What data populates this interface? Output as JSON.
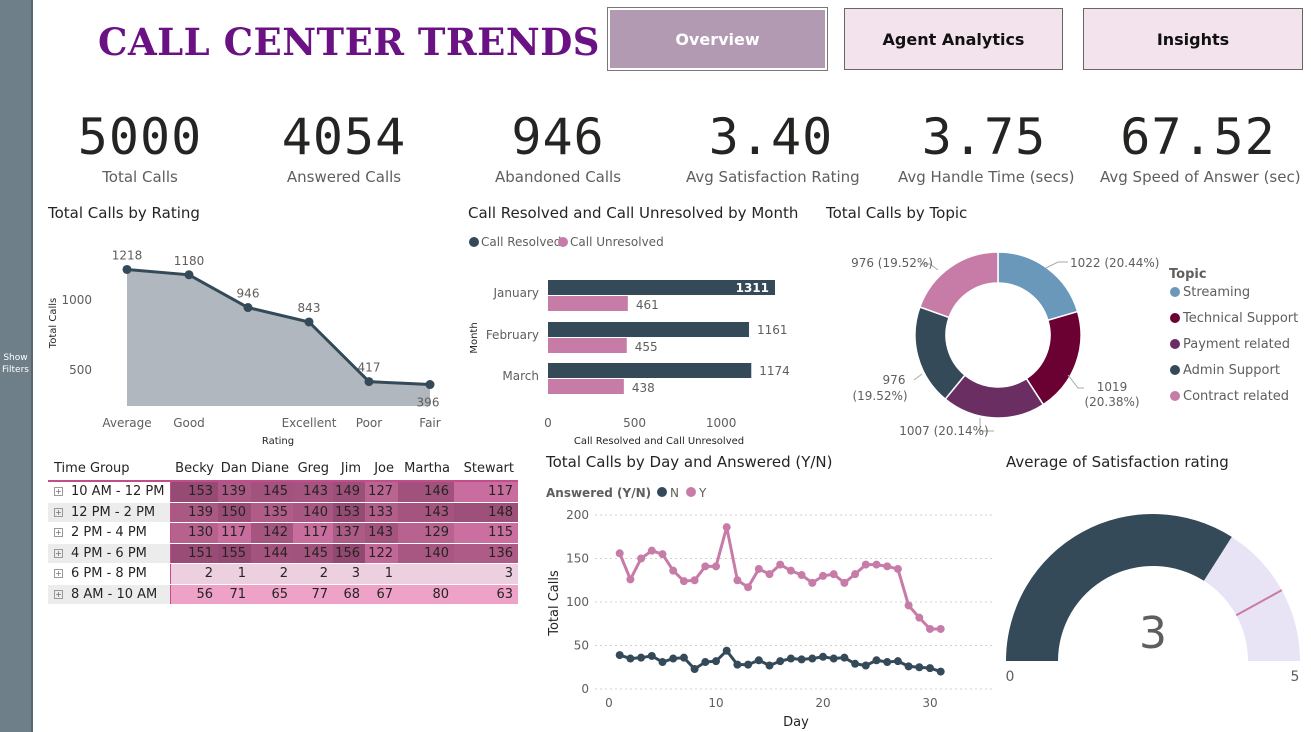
{
  "filters": {
    "label_line1": "Show",
    "label_line2": "Filters"
  },
  "title": "CALL CENTER TRENDS",
  "nav": {
    "overview": "Overview",
    "agent": "Agent Analytics",
    "insights": "Insights"
  },
  "kpis": [
    {
      "value": "5000",
      "label": "Total Calls"
    },
    {
      "value": "4054",
      "label": "Answered Calls"
    },
    {
      "value": "946",
      "label": "Abandoned Calls"
    },
    {
      "value": "3.40",
      "label": "Avg Satisfaction Rating"
    },
    {
      "value": "3.75",
      "label": "Avg Handle Time (secs)"
    },
    {
      "value": "67.52",
      "label": "Avg Speed of Answer (sec)"
    }
  ],
  "visuals": {
    "rating_title": "Total Calls by Rating",
    "month_title": "Call Resolved and Call Unresolved by Month",
    "topic_title": "Total Calls by Topic",
    "day_title": "Total Calls by Day and Answered (Y/N)",
    "gauge_title": "Average of Satisfaction rating"
  },
  "colors": {
    "dark": "#344a58",
    "pink": "#c77ca8",
    "grey_area": "#b0b7be",
    "maroon": "#6b0033",
    "purple": "#6b2e63",
    "blue": "#6a98bb",
    "lavender": "#e8e4f5",
    "brand": "#6a1184"
  },
  "chart_data": [
    {
      "type": "area",
      "title": "Total Calls by Rating",
      "xlabel": "Rating",
      "ylabel": "Total Calls",
      "categories": [
        "Average",
        "Good",
        "",
        "Excellent",
        "Poor",
        "Fair"
      ],
      "values": [
        1218,
        1180,
        946,
        843,
        417,
        396
      ],
      "yticks": [
        "1000",
        "500"
      ]
    },
    {
      "type": "bar",
      "title": "Call Resolved and Call Unresolved by Month",
      "orientation": "horizontal",
      "xlabel": "Call Resolved and Call Unresolved",
      "ylabel": "Month",
      "categories": [
        "January",
        "February",
        "March"
      ],
      "series": [
        {
          "name": "Call Resolved",
          "values": [
            1311,
            1161,
            1174
          ]
        },
        {
          "name": "Call Unresolved",
          "values": [
            461,
            455,
            438
          ]
        }
      ],
      "xticks": [
        "0",
        "500",
        "1000"
      ],
      "legend": "top-left"
    },
    {
      "type": "pie",
      "title": "Total Calls by Topic",
      "legend_title": "Topic",
      "slices": [
        {
          "name": "Streaming",
          "value": 1022,
          "label": "1022 (20.44%)"
        },
        {
          "name": "Technical Support",
          "value": 1019,
          "label_line1": "1019",
          "label_line2": "(20.38%)"
        },
        {
          "name": "Payment related",
          "value": 1007,
          "label": "1007 (20.14%)"
        },
        {
          "name": "Admin Support",
          "value": 976,
          "label_line1": "976",
          "label_line2": "(19.52%)"
        },
        {
          "name": "Contract related",
          "value": 976,
          "label": "976 (19.52%)"
        }
      ]
    },
    {
      "type": "line",
      "title": "Total Calls by Day and Answered (Y/N)",
      "xlabel": "Day",
      "ylabel": "Total Calls",
      "legend_title": "Answered (Y/N)",
      "x": [
        1,
        2,
        3,
        4,
        5,
        6,
        7,
        8,
        9,
        10,
        11,
        12,
        13,
        14,
        15,
        16,
        17,
        18,
        19,
        20,
        21,
        22,
        23,
        24,
        25,
        26,
        27,
        28,
        29,
        30,
        31
      ],
      "series": [
        {
          "name": "N",
          "values": [
            39,
            35,
            36,
            38,
            31,
            35,
            36,
            23,
            31,
            32,
            44,
            28,
            28,
            33,
            27,
            32,
            35,
            34,
            35,
            37,
            35,
            36,
            29,
            27,
            33,
            31,
            32,
            26,
            25,
            24,
            20
          ]
        },
        {
          "name": "Y",
          "values": [
            156,
            126,
            150,
            159,
            155,
            136,
            124,
            125,
            141,
            141,
            186,
            125,
            117,
            138,
            132,
            143,
            136,
            131,
            122,
            130,
            132,
            122,
            132,
            143,
            143,
            141,
            138,
            96,
            82,
            69,
            69
          ]
        }
      ],
      "xticks": [
        "0",
        "10",
        "20",
        "30"
      ],
      "yticks": [
        "0",
        "50",
        "100",
        "150",
        "200"
      ],
      "ylim": [
        0,
        200
      ]
    },
    {
      "type": "gauge",
      "title": "Average of Satisfaction rating",
      "value": 3.4,
      "value_label": "3",
      "min": 0,
      "max": 5,
      "target": 4.2,
      "min_label": "0",
      "max_label": "5"
    }
  ],
  "table": {
    "columns": [
      "Time Group",
      "Becky",
      "Dan",
      "Diane",
      "Greg",
      "Jim",
      "Joe",
      "Martha",
      "Stewart"
    ],
    "rows": [
      {
        "group": "10 AM - 12 PM",
        "values": [
          "153",
          "139",
          "145",
          "143",
          "149",
          "127",
          "146",
          "117"
        ]
      },
      {
        "group": "12 PM - 2 PM",
        "values": [
          "139",
          "150",
          "135",
          "140",
          "153",
          "133",
          "143",
          "148"
        ]
      },
      {
        "group": "2 PM - 4 PM",
        "values": [
          "130",
          "117",
          "142",
          "117",
          "137",
          "143",
          "129",
          "115"
        ]
      },
      {
        "group": "4 PM - 6 PM",
        "values": [
          "151",
          "155",
          "144",
          "145",
          "156",
          "122",
          "140",
          "136"
        ]
      },
      {
        "group": "6 PM - 8 PM",
        "values": [
          "2",
          "1",
          "2",
          "2",
          "3",
          "1",
          "",
          "3"
        ]
      },
      {
        "group": "8 AM - 10 AM",
        "values": [
          "56",
          "71",
          "65",
          "77",
          "68",
          "67",
          "80",
          "63"
        ]
      }
    ]
  }
}
